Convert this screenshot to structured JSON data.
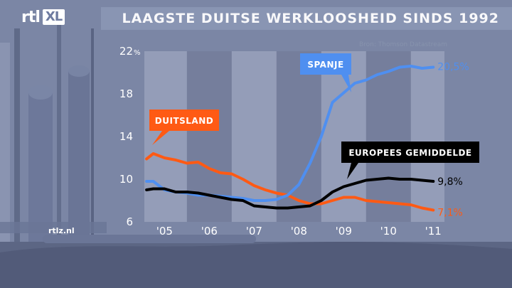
{
  "header": {
    "logo_text": "rtl",
    "logo_badge": "XL",
    "title": "LAAGSTE DUITSE WERKLOOSHEID SINDS 1992"
  },
  "source": "Bron: Thomson Datastream",
  "footer": {
    "site": "rtlz.nl"
  },
  "chart_data": {
    "type": "line",
    "title": "LAAGSTE DUITSE WERKLOOSHEID SINDS 1992",
    "xlabel": "",
    "ylabel": "",
    "x_ticks": [
      "'05",
      "'06",
      "'07",
      "'08",
      "'09",
      "'10",
      "'11"
    ],
    "x_tick_values": [
      2005.0,
      2006.0,
      2007.0,
      2008.0,
      2009.0,
      2010.0,
      2011.0
    ],
    "y_ticks": [
      6,
      10,
      14,
      18,
      22
    ],
    "y_tick_labels": [
      "6",
      "10",
      "14",
      "18",
      "22"
    ],
    "y_unit": "%",
    "xlim": [
      2004.55,
      2011.25
    ],
    "ylim": [
      6,
      22
    ],
    "grid": false,
    "year_bands": true,
    "series": [
      {
        "name": "DUITSLAND",
        "color": "#ff5a14",
        "end_label": "7,1%",
        "label_color": "#ff5a14",
        "points": [
          [
            2004.6,
            11.9
          ],
          [
            2004.75,
            12.4
          ],
          [
            2005.0,
            12.0
          ],
          [
            2005.25,
            11.8
          ],
          [
            2005.5,
            11.5
          ],
          [
            2005.75,
            11.6
          ],
          [
            2006.0,
            11.0
          ],
          [
            2006.25,
            10.6
          ],
          [
            2006.5,
            10.5
          ],
          [
            2006.75,
            10.0
          ],
          [
            2007.0,
            9.4
          ],
          [
            2007.25,
            9.0
          ],
          [
            2007.5,
            8.7
          ],
          [
            2007.75,
            8.5
          ],
          [
            2008.0,
            8.0
          ],
          [
            2008.25,
            7.7
          ],
          [
            2008.5,
            7.7
          ],
          [
            2008.75,
            8.0
          ],
          [
            2009.0,
            8.3
          ],
          [
            2009.25,
            8.3
          ],
          [
            2009.5,
            8.0
          ],
          [
            2009.75,
            7.9
          ],
          [
            2010.0,
            7.8
          ],
          [
            2010.25,
            7.7
          ],
          [
            2010.5,
            7.6
          ],
          [
            2010.75,
            7.3
          ],
          [
            2011.0,
            7.1
          ]
        ]
      },
      {
        "name": "SPANJE",
        "color": "#4f8ff0",
        "end_label": "20,5%",
        "label_color": "#4f8ff0",
        "points": [
          [
            2004.6,
            9.8
          ],
          [
            2004.75,
            9.8
          ],
          [
            2005.0,
            9.0
          ],
          [
            2005.25,
            8.8
          ],
          [
            2005.5,
            8.7
          ],
          [
            2005.75,
            8.5
          ],
          [
            2006.0,
            8.5
          ],
          [
            2006.25,
            8.4
          ],
          [
            2006.5,
            8.3
          ],
          [
            2006.75,
            8.2
          ],
          [
            2007.0,
            8.0
          ],
          [
            2007.25,
            8.0
          ],
          [
            2007.5,
            8.1
          ],
          [
            2007.75,
            8.5
          ],
          [
            2008.0,
            9.5
          ],
          [
            2008.25,
            11.5
          ],
          [
            2008.5,
            14.0
          ],
          [
            2008.75,
            17.2
          ],
          [
            2009.0,
            18.1
          ],
          [
            2009.25,
            19.0
          ],
          [
            2009.5,
            19.3
          ],
          [
            2009.75,
            19.8
          ],
          [
            2010.0,
            20.1
          ],
          [
            2010.25,
            20.5
          ],
          [
            2010.5,
            20.6
          ],
          [
            2010.75,
            20.4
          ],
          [
            2011.0,
            20.5
          ]
        ]
      },
      {
        "name": "EUROPEES GEMIDDELDE",
        "color": "#000000",
        "end_label": "9,8%",
        "label_color": "#000000",
        "points": [
          [
            2004.6,
            9.0
          ],
          [
            2004.75,
            9.1
          ],
          [
            2005.0,
            9.1
          ],
          [
            2005.25,
            8.8
          ],
          [
            2005.5,
            8.8
          ],
          [
            2005.75,
            8.7
          ],
          [
            2006.0,
            8.5
          ],
          [
            2006.25,
            8.3
          ],
          [
            2006.5,
            8.1
          ],
          [
            2006.75,
            8.0
          ],
          [
            2007.0,
            7.5
          ],
          [
            2007.25,
            7.4
          ],
          [
            2007.5,
            7.3
          ],
          [
            2007.75,
            7.3
          ],
          [
            2008.0,
            7.4
          ],
          [
            2008.25,
            7.5
          ],
          [
            2008.5,
            8.0
          ],
          [
            2008.75,
            8.8
          ],
          [
            2009.0,
            9.3
          ],
          [
            2009.25,
            9.6
          ],
          [
            2009.5,
            9.9
          ],
          [
            2009.75,
            10.0
          ],
          [
            2010.0,
            10.1
          ],
          [
            2010.25,
            10.0
          ],
          [
            2010.5,
            10.0
          ],
          [
            2010.75,
            9.9
          ],
          [
            2011.0,
            9.8
          ]
        ]
      }
    ],
    "annotations": [
      {
        "text": "DUITSLAND",
        "box_color": "#ff5a14",
        "x": 2004.9,
        "y": 12.5
      },
      {
        "text": "SPANJE",
        "box_color": "#4f8ff0",
        "x": 2008.95,
        "y": 17.3
      },
      {
        "text": "EUROPEES GEMIDDELDE",
        "box_color": "#000000",
        "x": 2008.7,
        "y": 9.3
      }
    ]
  }
}
